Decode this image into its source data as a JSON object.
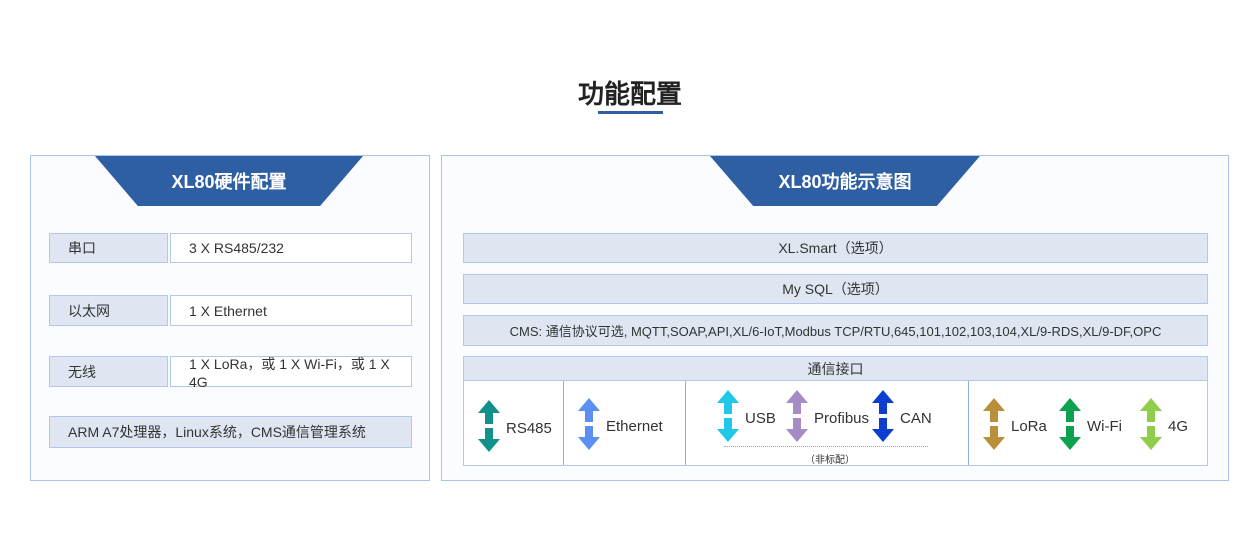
{
  "title": "功能配置",
  "hardware": {
    "header": "XL80硬件配置",
    "rows": [
      {
        "label": "串口",
        "value": "3 X RS485/232"
      },
      {
        "label": "以太网",
        "value": "1 X Ethernet"
      },
      {
        "label": "无线",
        "value": "1 X LoRa，或 1 X Wi-Fi，或 1 X 4G"
      }
    ],
    "footer": "ARM A7处理器，Linux系统，CMS通信管理系统"
  },
  "function": {
    "header": "XL80功能示意图",
    "bars": [
      "XL.Smart（选项）",
      "My SQL（选项）",
      "CMS: 通信协议可选, MQTT,SOAP,API,XL/6-IoT,Modbus TCP/RTU,645,101,102,103,104,XL/9-RDS,XL/9-DF,OPC"
    ],
    "interface_title": "通信接口",
    "interfaces": [
      {
        "label": "RS485",
        "color": "#11918a",
        "icon": "double-arrow"
      },
      {
        "label": "Ethernet",
        "color": "#5b90f2",
        "icon": "double-arrow"
      },
      {
        "label": "USB",
        "color": "#22c8e8",
        "icon": "double-arrow"
      },
      {
        "label": "Profibus",
        "color": "#a68cc4",
        "icon": "double-arrow"
      },
      {
        "label": "CAN",
        "color": "#0c3ed0",
        "icon": "double-arrow"
      },
      {
        "label": "LoRa",
        "color": "#b98f3c",
        "icon": "double-arrow"
      },
      {
        "label": "Wi-Fi",
        "color": "#0fa24e",
        "icon": "double-arrow"
      },
      {
        "label": "4G",
        "color": "#8fcd4c",
        "icon": "double-arrow"
      }
    ],
    "optional_note": "（非标配）"
  },
  "colors": {
    "accent": "#2f5fa3",
    "border": "#a9c3ee",
    "label_bg": "#dfe6f2"
  }
}
